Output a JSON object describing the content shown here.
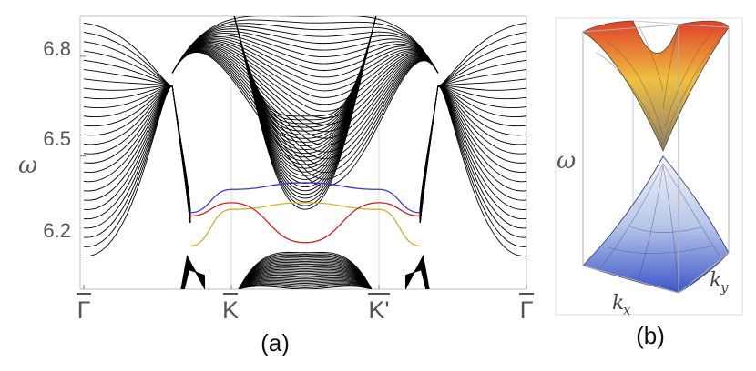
{
  "panel_a": {
    "caption": "(a)",
    "y_axis_label": "ω",
    "y_ticks": [
      {
        "value": 6.2,
        "label": "6.2"
      },
      {
        "value": 6.5,
        "label": "6.5"
      },
      {
        "value": 6.8,
        "label": "6.8"
      }
    ],
    "k_points": [
      {
        "position": 0,
        "label": "Γ"
      },
      {
        "position": 1,
        "label": "K"
      },
      {
        "position": 2,
        "label": "K'"
      },
      {
        "position": 3,
        "label": "Γ"
      }
    ]
  },
  "panel_b": {
    "caption": "(b)",
    "vertical_label": "ω",
    "kx_label": "k",
    "kx_sub": "x",
    "ky_label": "k",
    "ky_sub": "y"
  },
  "chart_data": {
    "type": "line",
    "xlabel": "",
    "ylabel": "ω",
    "ylim": [
      6.1,
      6.92
    ],
    "x_ticks": [
      "Γ",
      "K",
      "K'",
      "Γ"
    ],
    "bulk_bands_color": "#000000",
    "edge_states": [
      {
        "color": "#3a3ad0",
        "points": [
          [
            0.72,
            6.33
          ],
          [
            1.0,
            6.4
          ],
          [
            1.5,
            6.42
          ],
          [
            2.0,
            6.4
          ],
          [
            2.28,
            6.33
          ]
        ]
      },
      {
        "color": "#d0b030",
        "points": [
          [
            0.72,
            6.23
          ],
          [
            1.0,
            6.34
          ],
          [
            1.5,
            6.36
          ],
          [
            2.0,
            6.34
          ],
          [
            2.28,
            6.23
          ]
        ]
      },
      {
        "color": "#cc2020",
        "points": [
          [
            0.72,
            6.32
          ],
          [
            1.0,
            6.36
          ],
          [
            1.5,
            6.24
          ],
          [
            2.0,
            6.36
          ],
          [
            2.28,
            6.32
          ]
        ]
      }
    ]
  }
}
